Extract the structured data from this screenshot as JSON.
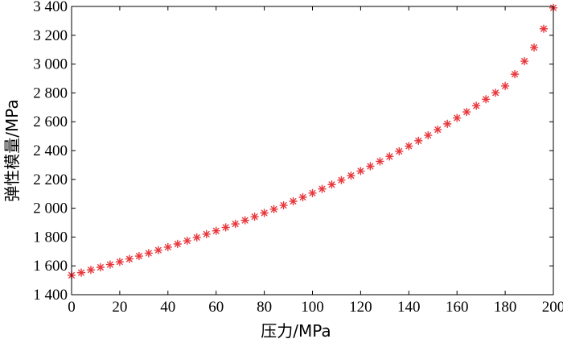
{
  "chart_data": {
    "type": "scatter",
    "xlabel": "压力/MPa",
    "ylabel": "弹性模量/MPa",
    "xlim": [
      0,
      200
    ],
    "ylim": [
      1400,
      3400
    ],
    "xticks": [
      0,
      20,
      40,
      60,
      80,
      100,
      120,
      140,
      160,
      180,
      200
    ],
    "yticks": [
      1400,
      1600,
      1800,
      2000,
      2200,
      2400,
      2600,
      2800,
      3000,
      3200,
      3400
    ],
    "ytick_labels": [
      "1 400",
      "1 600",
      "1 800",
      "2 000",
      "2 200",
      "2 400",
      "2 600",
      "2 800",
      "3 000",
      "3 200",
      "3 400"
    ],
    "grid": false,
    "marker": "asterisk",
    "marker_color": "#e8383d",
    "series": [
      {
        "x": [
          0,
          4,
          8,
          12,
          16,
          20,
          24,
          28,
          32,
          36,
          40,
          44,
          48,
          52,
          56,
          60,
          64,
          68,
          72,
          76,
          80,
          84,
          88,
          92,
          96,
          100,
          104,
          108,
          112,
          116,
          120,
          124,
          128,
          132,
          136,
          140,
          144,
          148,
          152,
          156,
          160,
          164,
          168,
          172,
          176,
          180,
          184,
          188,
          192,
          196,
          200
        ],
        "y": [
          1535,
          1553,
          1572,
          1590,
          1609,
          1628,
          1648,
          1668,
          1688,
          1709,
          1730,
          1752,
          1774,
          1797,
          1820,
          1843,
          1867,
          1891,
          1916,
          1941,
          1967,
          1993,
          2020,
          2048,
          2076,
          2105,
          2134,
          2164,
          2195,
          2226,
          2258,
          2291,
          2325,
          2359,
          2395,
          2431,
          2468,
          2506,
          2545,
          2585,
          2626,
          2668,
          2711,
          2756,
          2801,
          2848,
          2930,
          3020,
          3115,
          3245,
          3390
        ]
      }
    ]
  }
}
